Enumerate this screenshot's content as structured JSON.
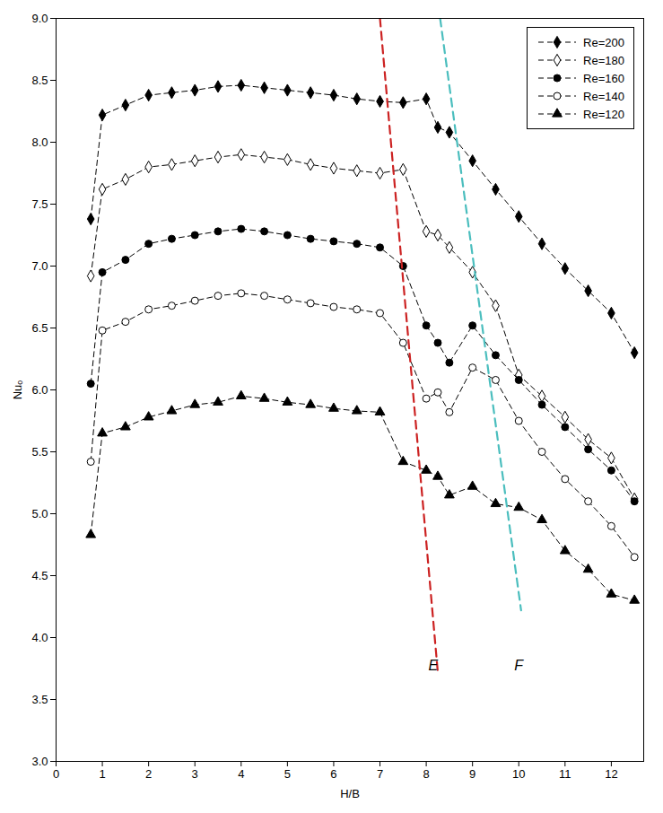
{
  "chart_data": {
    "type": "line",
    "xlabel": "H/B",
    "ylabel": "Nuₒ",
    "xlim": [
      0,
      12.7
    ],
    "ylim": [
      3.0,
      9.0
    ],
    "xticks": [
      0,
      1,
      2,
      3,
      4,
      5,
      6,
      7,
      8,
      9,
      10,
      11,
      12
    ],
    "yticks": [
      3.0,
      3.5,
      4.0,
      4.5,
      5.0,
      5.5,
      6.0,
      6.5,
      7.0,
      7.5,
      8.0,
      8.5,
      9.0
    ],
    "grid": false,
    "legend": "upper right",
    "x": [
      0.75,
      1.0,
      1.5,
      2.0,
      2.5,
      3.0,
      3.5,
      4.0,
      4.5,
      5.0,
      5.5,
      6.0,
      6.5,
      7.0,
      7.5,
      8.0,
      8.25,
      8.5,
      9.0,
      9.5,
      10.0,
      10.5,
      11.0,
      11.5,
      12.0,
      12.5
    ],
    "series": [
      {
        "name": "Re=200",
        "color": "black",
        "marker": "diamond",
        "line_style": "dashed",
        "values": [
          7.38,
          8.22,
          8.3,
          8.38,
          8.4,
          8.42,
          8.45,
          8.46,
          8.44,
          8.42,
          8.4,
          8.38,
          8.35,
          8.33,
          8.32,
          8.35,
          8.12,
          8.08,
          7.85,
          7.62,
          7.4,
          7.18,
          6.98,
          6.8,
          6.62,
          6.3
        ]
      },
      {
        "name": "Re=180",
        "color": "black",
        "marker": "diamond-open",
        "line_style": "dashed",
        "values": [
          6.92,
          7.62,
          7.7,
          7.8,
          7.82,
          7.85,
          7.88,
          7.9,
          7.88,
          7.86,
          7.82,
          7.79,
          7.77,
          7.75,
          7.78,
          7.28,
          7.25,
          7.15,
          6.95,
          6.68,
          6.12,
          5.95,
          5.78,
          5.6,
          5.45,
          5.12
        ]
      },
      {
        "name": "Re=160",
        "color": "black",
        "marker": "circle",
        "line_style": "dashed",
        "values": [
          6.05,
          6.95,
          7.05,
          7.18,
          7.22,
          7.25,
          7.28,
          7.3,
          7.28,
          7.25,
          7.22,
          7.2,
          7.18,
          7.15,
          7.0,
          6.52,
          6.38,
          6.22,
          6.52,
          6.28,
          6.08,
          5.88,
          5.7,
          5.52,
          5.35,
          5.1
        ]
      },
      {
        "name": "Re=140",
        "color": "black",
        "marker": "circle-open",
        "line_style": "dashed",
        "values": [
          5.42,
          6.48,
          6.55,
          6.65,
          6.68,
          6.72,
          6.76,
          6.78,
          6.76,
          6.73,
          6.7,
          6.67,
          6.65,
          6.62,
          6.38,
          5.93,
          5.98,
          5.82,
          6.18,
          6.08,
          5.75,
          5.5,
          5.28,
          5.1,
          4.9,
          4.65
        ]
      },
      {
        "name": "Re=120",
        "color": "black",
        "marker": "triangle",
        "line_style": "dashed",
        "values": [
          4.83,
          5.65,
          5.7,
          5.78,
          5.83,
          5.88,
          5.9,
          5.95,
          5.93,
          5.9,
          5.88,
          5.85,
          5.83,
          5.82,
          5.42,
          5.35,
          5.3,
          5.15,
          5.22,
          5.08,
          5.05,
          4.95,
          4.7,
          4.55,
          4.35,
          4.3
        ]
      }
    ],
    "reference_lines": [
      {
        "x": [
          7.0,
          8.25
        ],
        "y": [
          9.0,
          3.72
        ],
        "color": "#CC2222",
        "line_style": "dashed"
      },
      {
        "x": [
          8.3,
          10.05
        ],
        "y": [
          9.0,
          4.22
        ],
        "color": "#4BBEBE",
        "line_style": "dashed"
      }
    ],
    "annotations": [
      {
        "text": "E",
        "x": 8.15,
        "y": 3.82
      },
      {
        "text": "F",
        "x": 10.0,
        "y": 3.82
      }
    ]
  }
}
